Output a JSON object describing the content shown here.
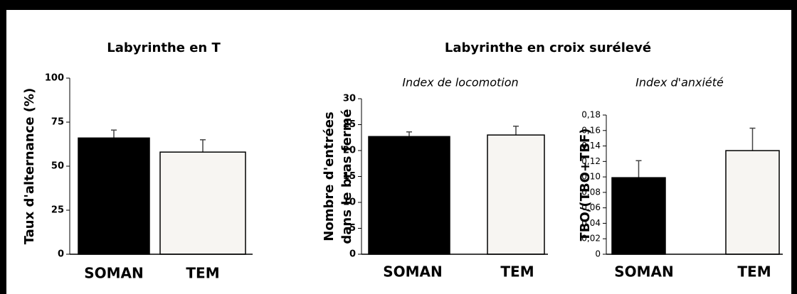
{
  "group_titles": [
    "Labyrinthe en T",
    "Labyrinthe en croix surélevé"
  ],
  "chart_data": [
    {
      "type": "bar",
      "ylabel": [
        "Taux d'alternance (%)"
      ],
      "categories": [
        "SOMAN",
        "TEM"
      ],
      "values": [
        66,
        58
      ],
      "errors": [
        4.5,
        7
      ],
      "colors": [
        "#000000",
        "#f7f5f2"
      ],
      "ylim": [
        0,
        100
      ],
      "yticks": [
        0,
        25,
        50,
        75,
        100
      ]
    },
    {
      "type": "bar",
      "title": "Index de locomotion",
      "ylabel": [
        "Nombre d'entrées",
        "dans le bras fermé"
      ],
      "categories": [
        "SOMAN",
        "TEM"
      ],
      "values": [
        22.7,
        23
      ],
      "errors": [
        0.9,
        1.7
      ],
      "colors": [
        "#000000",
        "#f7f5f2"
      ],
      "ylim": [
        0,
        30
      ],
      "yticks": [
        0,
        5,
        10,
        15,
        20,
        25,
        30
      ]
    },
    {
      "type": "bar",
      "title": "Index d'anxiété",
      "ylabel": [
        "TBO/(TBO+TBF)"
      ],
      "categories": [
        "SOMAN",
        "TEM"
      ],
      "values": [
        0.099,
        0.134
      ],
      "errors": [
        0.022,
        0.029
      ],
      "colors": [
        "#000000",
        "#f7f5f2"
      ],
      "ylim": [
        0,
        0.18
      ],
      "yticks": [
        0,
        {
          "value": 0.02,
          "label": "0,02"
        },
        {
          "value": 0.04,
          "label": "0,04"
        },
        {
          "value": 0.06,
          "label": "0,06"
        },
        {
          "value": 0.08,
          "label": "0,08"
        },
        {
          "value": 0.1,
          "label": "0,10"
        },
        {
          "value": 0.12,
          "label": "0,12"
        },
        {
          "value": 0.14,
          "label": "0,14"
        },
        {
          "value": 0.16,
          "label": "0,16"
        },
        {
          "value": 0.18,
          "label": "0,18"
        }
      ]
    }
  ]
}
